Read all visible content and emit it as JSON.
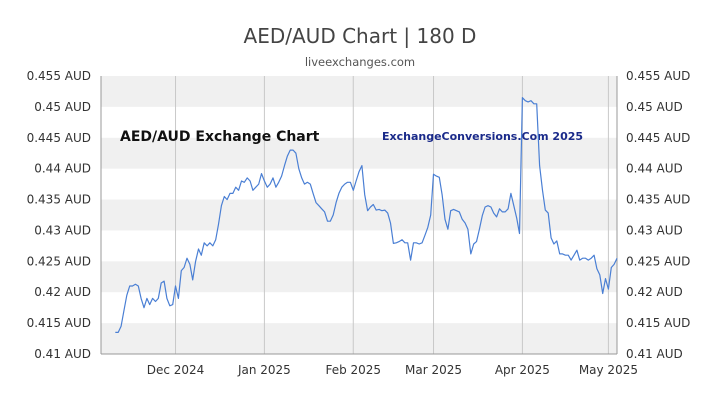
{
  "chart_data": {
    "type": "line",
    "title": "AED/AUD Chart | 180 D",
    "subtitle": "liveexchanges.com",
    "inner_title": "AED/AUD Exchange Chart",
    "watermark": "ExchangeConversions.Com 2025",
    "ylim": [
      0.41,
      0.455
    ],
    "y_ticks": [
      0.41,
      0.415,
      0.42,
      0.425,
      0.43,
      0.435,
      0.44,
      0.445,
      0.45,
      0.455
    ],
    "y_tick_labels": [
      "0.41 AUD",
      "0.415 AUD",
      "0.42 AUD",
      "0.425 AUD",
      "0.43 AUD",
      "0.435 AUD",
      "0.44 AUD",
      "0.445 AUD",
      "0.45 AUD",
      "0.455 AUD"
    ],
    "xlim": [
      0,
      180
    ],
    "x_ticks": [
      {
        "label": "Dec 2024",
        "x": 26
      },
      {
        "label": "Jan 2025",
        "x": 57
      },
      {
        "label": "Feb 2025",
        "x": 88
      },
      {
        "label": "Mar 2025",
        "x": 116
      },
      {
        "label": "Apr 2025",
        "x": 147
      },
      {
        "label": "May 2025",
        "x": 177
      }
    ],
    "grid_bands": true,
    "line_color": "#4a7fd4",
    "series": [
      {
        "values": [
          [
            5,
            0.4135
          ],
          [
            6,
            0.4135
          ],
          [
            7,
            0.4145
          ],
          [
            8,
            0.417
          ],
          [
            9,
            0.4195
          ],
          [
            10,
            0.421
          ],
          [
            11,
            0.421
          ],
          [
            12,
            0.4213
          ],
          [
            13,
            0.421
          ],
          [
            14,
            0.419
          ],
          [
            15,
            0.4175
          ],
          [
            16,
            0.419
          ],
          [
            17,
            0.418
          ],
          [
            18,
            0.419
          ],
          [
            19,
            0.4185
          ],
          [
            20,
            0.419
          ],
          [
            21,
            0.4215
          ],
          [
            22,
            0.4218
          ],
          [
            23,
            0.419
          ],
          [
            24,
            0.4178
          ],
          [
            25,
            0.418
          ],
          [
            26,
            0.421
          ],
          [
            27,
            0.419
          ],
          [
            28,
            0.4235
          ],
          [
            29,
            0.424
          ],
          [
            30,
            0.4255
          ],
          [
            31,
            0.4245
          ],
          [
            32,
            0.422
          ],
          [
            33,
            0.425
          ],
          [
            34,
            0.427
          ],
          [
            35,
            0.426
          ],
          [
            36,
            0.428
          ],
          [
            37,
            0.4275
          ],
          [
            38,
            0.428
          ],
          [
            39,
            0.4275
          ],
          [
            40,
            0.4285
          ],
          [
            41,
            0.431
          ],
          [
            42,
            0.434
          ],
          [
            43,
            0.4355
          ],
          [
            44,
            0.435
          ],
          [
            45,
            0.436
          ],
          [
            46,
            0.436
          ],
          [
            47,
            0.437
          ],
          [
            48,
            0.4365
          ],
          [
            49,
            0.438
          ],
          [
            50,
            0.4378
          ],
          [
            51,
            0.4385
          ],
          [
            52,
            0.438
          ],
          [
            53,
            0.4365
          ],
          [
            54,
            0.437
          ],
          [
            55,
            0.4375
          ],
          [
            56,
            0.4392
          ],
          [
            57,
            0.438
          ],
          [
            58,
            0.437
          ],
          [
            59,
            0.4375
          ],
          [
            60,
            0.4385
          ],
          [
            61,
            0.437
          ],
          [
            62,
            0.4378
          ],
          [
            63,
            0.4388
          ],
          [
            64,
            0.4405
          ],
          [
            65,
            0.442
          ],
          [
            66,
            0.443
          ],
          [
            67,
            0.443
          ],
          [
            68,
            0.4425
          ],
          [
            69,
            0.44
          ],
          [
            70,
            0.4385
          ],
          [
            71,
            0.4375
          ],
          [
            72,
            0.4378
          ],
          [
            73,
            0.4375
          ],
          [
            74,
            0.436
          ],
          [
            75,
            0.4345
          ],
          [
            76,
            0.434
          ],
          [
            77,
            0.4335
          ],
          [
            78,
            0.433
          ],
          [
            79,
            0.4315
          ],
          [
            80,
            0.4315
          ],
          [
            81,
            0.4325
          ],
          [
            82,
            0.4345
          ],
          [
            83,
            0.436
          ],
          [
            84,
            0.437
          ],
          [
            85,
            0.4375
          ],
          [
            86,
            0.4378
          ],
          [
            87,
            0.4378
          ],
          [
            88,
            0.4365
          ],
          [
            89,
            0.438
          ],
          [
            90,
            0.4395
          ],
          [
            91,
            0.4405
          ],
          [
            92,
            0.4358
          ],
          [
            93,
            0.4332
          ],
          [
            94,
            0.4338
          ],
          [
            95,
            0.4342
          ],
          [
            96,
            0.4333
          ],
          [
            97,
            0.4334
          ],
          [
            98,
            0.4332
          ],
          [
            99,
            0.4333
          ],
          [
            100,
            0.4328
          ],
          [
            101,
            0.4312
          ],
          [
            102,
            0.4279
          ],
          [
            103,
            0.428
          ],
          [
            104,
            0.4282
          ],
          [
            105,
            0.4285
          ],
          [
            106,
            0.428
          ],
          [
            107,
            0.428
          ],
          [
            108,
            0.4252
          ],
          [
            109,
            0.428
          ],
          [
            110,
            0.428
          ],
          [
            111,
            0.4278
          ],
          [
            112,
            0.428
          ],
          [
            113,
            0.4292
          ],
          [
            114,
            0.4305
          ],
          [
            115,
            0.4325
          ],
          [
            116,
            0.4391
          ],
          [
            117,
            0.4388
          ],
          [
            118,
            0.4386
          ],
          [
            119,
            0.4358
          ],
          [
            120,
            0.4318
          ],
          [
            121,
            0.4302
          ],
          [
            122,
            0.4332
          ],
          [
            123,
            0.4334
          ],
          [
            124,
            0.4332
          ],
          [
            125,
            0.433
          ],
          [
            126,
            0.4318
          ],
          [
            127,
            0.4312
          ],
          [
            128,
            0.4302
          ],
          [
            129,
            0.4262
          ],
          [
            130,
            0.4278
          ],
          [
            131,
            0.4282
          ],
          [
            132,
            0.4302
          ],
          [
            133,
            0.4324
          ],
          [
            134,
            0.4338
          ],
          [
            135,
            0.434
          ],
          [
            136,
            0.4338
          ],
          [
            137,
            0.4328
          ],
          [
            138,
            0.4322
          ],
          [
            139,
            0.4335
          ],
          [
            140,
            0.433
          ],
          [
            141,
            0.433
          ],
          [
            142,
            0.4335
          ],
          [
            143,
            0.436
          ],
          [
            144,
            0.434
          ],
          [
            145,
            0.432
          ],
          [
            146,
            0.4295
          ],
          [
            147,
            0.4515
          ],
          [
            148,
            0.451
          ],
          [
            149,
            0.4508
          ],
          [
            150,
            0.451
          ],
          [
            151,
            0.4505
          ],
          [
            152,
            0.4505
          ],
          [
            153,
            0.4405
          ],
          [
            154,
            0.4365
          ],
          [
            155,
            0.4333
          ],
          [
            156,
            0.4328
          ],
          [
            157,
            0.4288
          ],
          [
            158,
            0.4278
          ],
          [
            159,
            0.4283
          ],
          [
            160,
            0.4262
          ],
          [
            161,
            0.4262
          ],
          [
            162,
            0.426
          ],
          [
            163,
            0.426
          ],
          [
            164,
            0.4252
          ],
          [
            165,
            0.426
          ],
          [
            166,
            0.4268
          ],
          [
            167,
            0.4252
          ],
          [
            168,
            0.4255
          ],
          [
            169,
            0.4255
          ],
          [
            170,
            0.4252
          ],
          [
            171,
            0.4255
          ],
          [
            172,
            0.426
          ],
          [
            173,
            0.4238
          ],
          [
            174,
            0.4228
          ],
          [
            175,
            0.4198
          ],
          [
            176,
            0.4222
          ],
          [
            177,
            0.4205
          ],
          [
            178,
            0.424
          ],
          [
            179,
            0.4245
          ],
          [
            180,
            0.4255
          ]
        ]
      }
    ]
  }
}
